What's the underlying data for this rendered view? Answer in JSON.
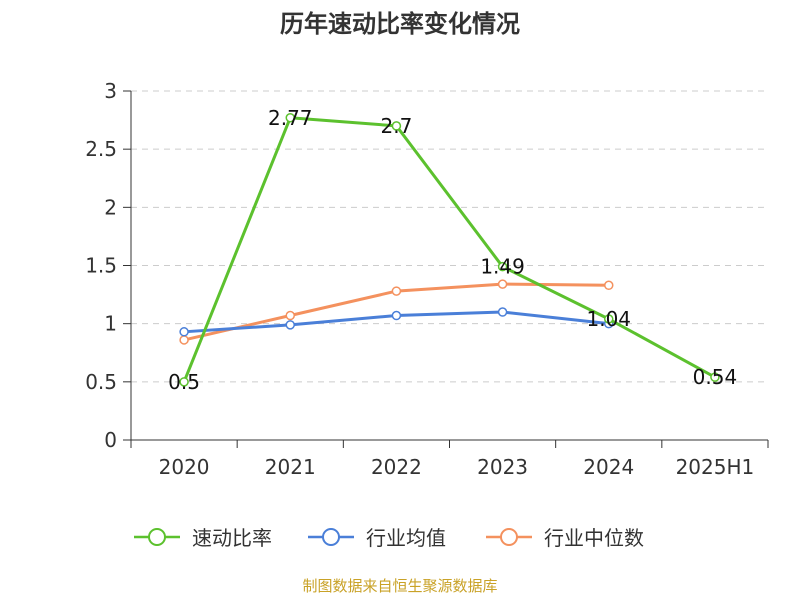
{
  "chart_data": {
    "type": "line",
    "title": "历年速动比率变化情况",
    "categories": [
      "2020",
      "2021",
      "2022",
      "2023",
      "2024",
      "2025H1"
    ],
    "ylim": [
      0,
      3
    ],
    "yticks": [
      "0",
      "0.5",
      "1",
      "1.5",
      "2",
      "2.5",
      "3"
    ],
    "grid": true,
    "legend_position": "bottom",
    "series": [
      {
        "name": "速动比率",
        "color": "#5cc12e",
        "values": [
          0.5,
          2.77,
          2.7,
          1.49,
          1.04,
          0.54
        ],
        "labels": [
          "0.5",
          "2.77",
          "2.7",
          "1.49",
          "1.04",
          "0.54"
        ]
      },
      {
        "name": "行业均值",
        "color": "#4a7fd8",
        "values": [
          0.93,
          0.99,
          1.07,
          1.1,
          1.0,
          null
        ]
      },
      {
        "name": "行业中位数",
        "color": "#f4915e",
        "values": [
          0.86,
          1.07,
          1.28,
          1.34,
          1.33,
          null
        ]
      }
    ]
  },
  "source": "制图数据来自恒生聚源数据库"
}
